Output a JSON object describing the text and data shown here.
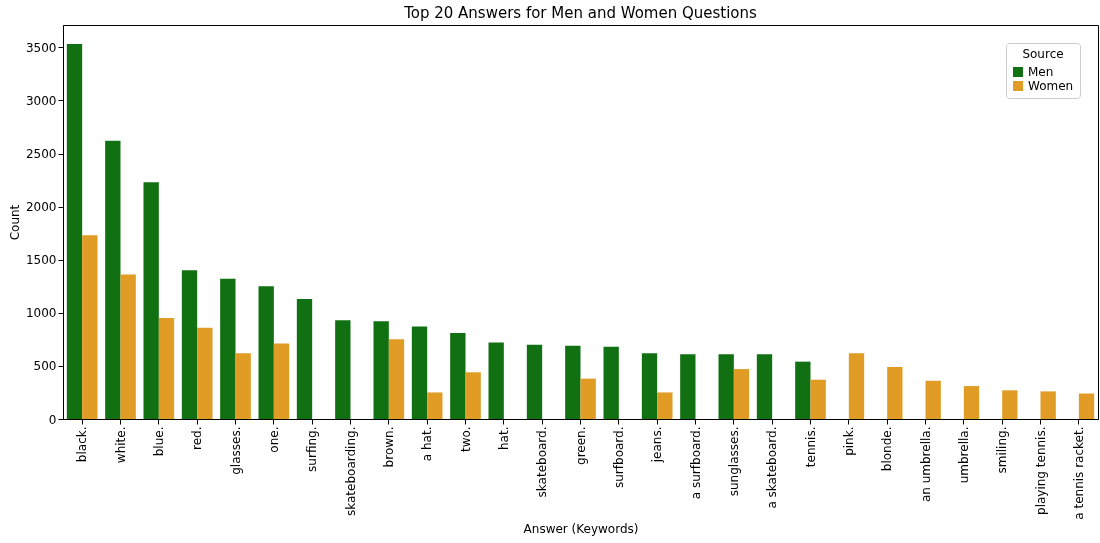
{
  "chart_data": {
    "type": "bar",
    "title": "Top 20 Answers for Men and Women Questions",
    "xlabel": "Answer (Keywords)",
    "ylabel": "Count",
    "legend_title": "Source",
    "categories": [
      "black.",
      "white.",
      "blue.",
      "red.",
      "glasses.",
      "one.",
      "surfing.",
      "skateboarding.",
      "brown.",
      "a hat.",
      "two.",
      "hat.",
      "skateboard.",
      "green.",
      "surfboard.",
      "jeans.",
      "a surfboard.",
      "sunglasses.",
      "a skateboard.",
      "tennis.",
      "pink.",
      "blonde.",
      "an umbrella.",
      "umbrella.",
      "smiling.",
      "playing tennis.",
      "a tennis racket."
    ],
    "series": [
      {
        "name": "Men",
        "color": "#117012",
        "values": [
          3530,
          2620,
          2230,
          1400,
          1320,
          1250,
          1130,
          930,
          920,
          870,
          810,
          720,
          700,
          690,
          680,
          620,
          610,
          610,
          610,
          540,
          null,
          null,
          null,
          null,
          null,
          null,
          null
        ]
      },
      {
        "name": "Women",
        "color": "#e09c24",
        "values": [
          1730,
          1360,
          950,
          860,
          620,
          710,
          null,
          null,
          750,
          250,
          440,
          null,
          null,
          380,
          null,
          250,
          null,
          470,
          null,
          370,
          620,
          490,
          360,
          310,
          270,
          260,
          240
        ]
      }
    ],
    "ylim": [
      0,
      3710
    ],
    "yticks": [
      0,
      500,
      1000,
      1500,
      2000,
      2500,
      3000,
      3500
    ],
    "grid": false,
    "legend": "top right"
  }
}
